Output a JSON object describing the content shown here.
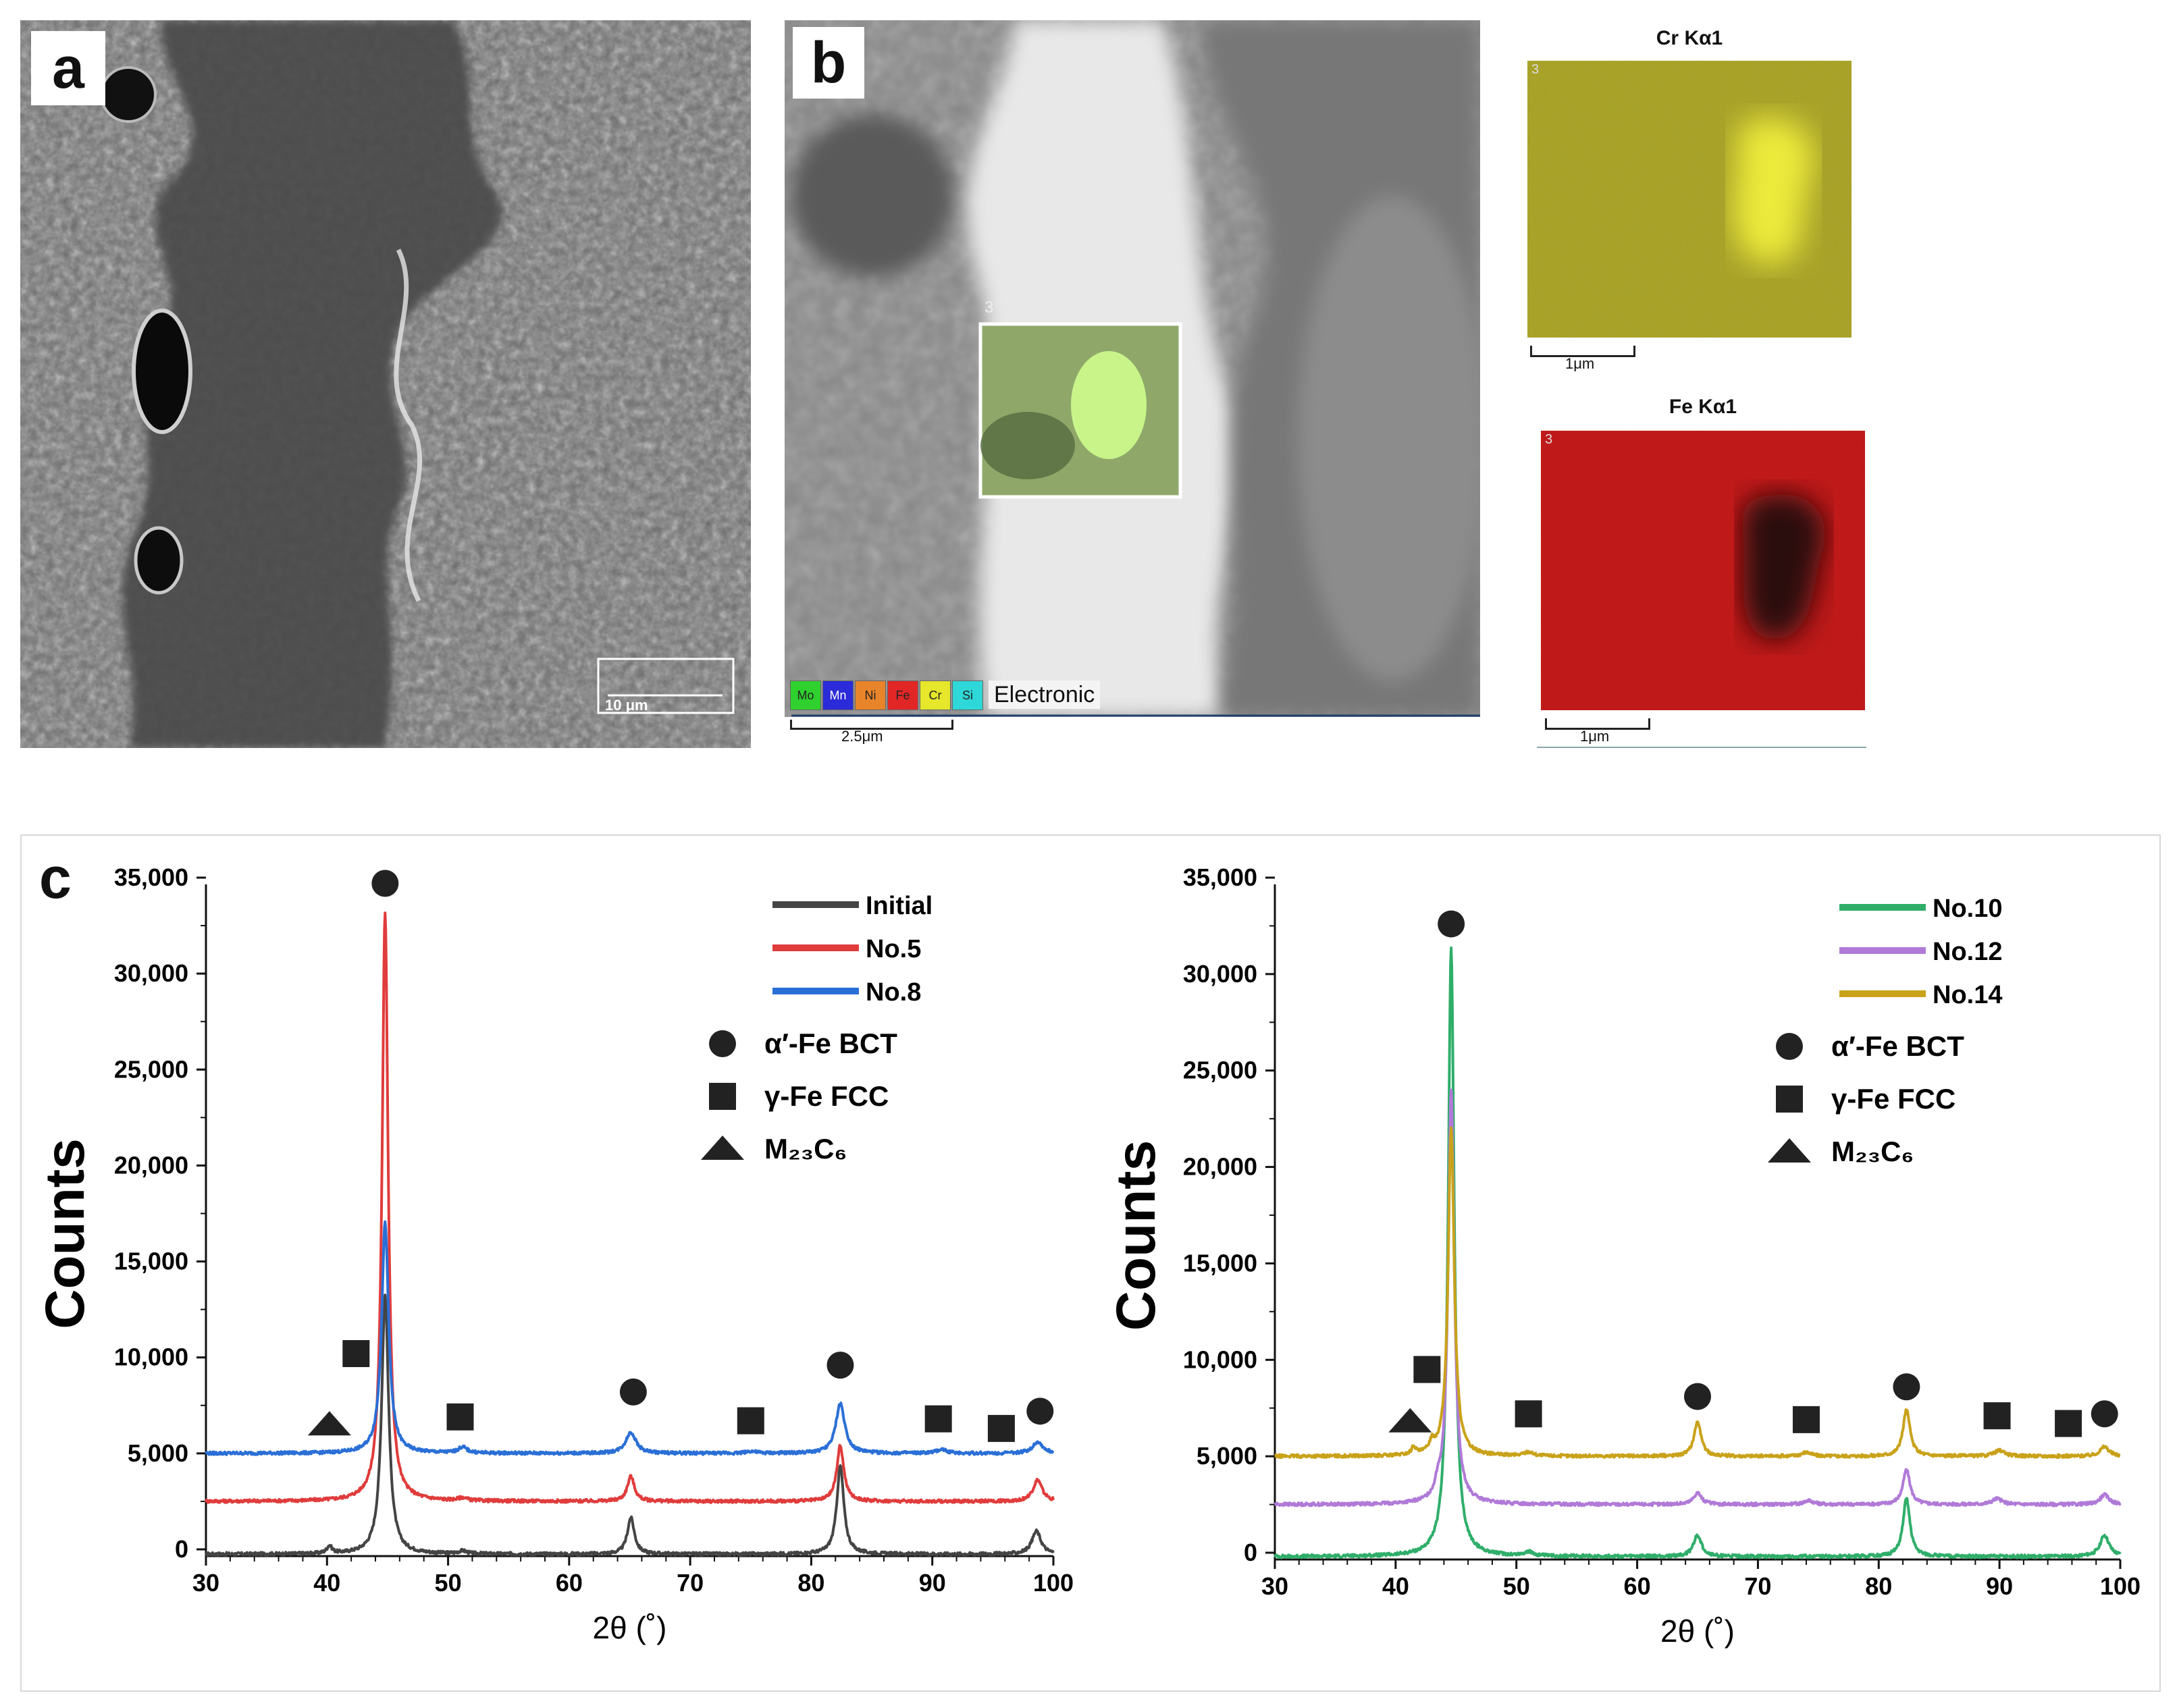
{
  "panels": {
    "a": {
      "letter": "a",
      "scalebar": "10 μm"
    },
    "b": {
      "letter": "b",
      "region_label": "3",
      "element_legend": [
        "Mo",
        "Mn",
        "Ni",
        "Fe",
        "Cr",
        "Si"
      ],
      "element_colors": [
        "#2fd12f",
        "#2b2bd9",
        "#e8842a",
        "#e22626",
        "#e6e62b",
        "#2fd8d8"
      ],
      "legend_text": "Electronic",
      "scalebar": "2.5μm"
    },
    "maps": [
      {
        "title": "Cr Kα1",
        "region_label": "3",
        "scalebar": "1μm",
        "color": "#c9c02a"
      },
      {
        "title": "Fe Kα1",
        "region_label": "3",
        "scalebar": "1μm",
        "color": "#c81818"
      }
    ],
    "c": {
      "letter": "c"
    }
  },
  "chart_data": [
    {
      "type": "line",
      "xlabel": "2θ (˚)",
      "ylabel": "Counts",
      "xlim": [
        30,
        100
      ],
      "ylim": [
        0,
        35000
      ],
      "xticks": [
        30,
        40,
        50,
        60,
        70,
        80,
        90,
        100
      ],
      "yticks": [
        0,
        5000,
        10000,
        15000,
        20000,
        25000,
        30000,
        35000
      ],
      "ytick_labels": [
        "0",
        "5,000",
        "10,000",
        "15,000",
        "20,000",
        "25,000",
        "30,000",
        "35,000"
      ],
      "legend_position": "top-right",
      "series": [
        {
          "name": "Initial",
          "color": "#444444",
          "baseline": -250,
          "peaks": [
            [
              40.2,
              400,
              0.25
            ],
            [
              44.8,
              13500,
              0.35
            ],
            [
              51.2,
              150,
              0.4
            ],
            [
              65.1,
              1900,
              0.35
            ],
            [
              82.4,
              4600,
              0.35
            ],
            [
              98.6,
              1200,
              0.45
            ]
          ]
        },
        {
          "name": "No.5",
          "color": "#e03c3c",
          "baseline": 2500,
          "peaks": [
            [
              44.8,
              30700,
              0.3
            ],
            [
              51.2,
              150,
              0.4
            ],
            [
              65.1,
              1300,
              0.35
            ],
            [
              82.4,
              2900,
              0.35
            ],
            [
              98.7,
              1100,
              0.45
            ]
          ]
        },
        {
          "name": "No.8",
          "color": "#2a6fd6",
          "baseline": 5000,
          "peaks": [
            [
              44.8,
              12000,
              0.35
            ],
            [
              51.2,
              300,
              0.45
            ],
            [
              65.1,
              1100,
              0.5
            ],
            [
              75.0,
              100,
              0.5
            ],
            [
              82.4,
              2600,
              0.45
            ],
            [
              90.8,
              200,
              0.5
            ],
            [
              98.7,
              600,
              0.5
            ]
          ]
        }
      ],
      "markers": [
        {
          "symbol": "circle",
          "x": 44.8,
          "y": 34700
        },
        {
          "symbol": "square",
          "x": 42.4,
          "y": 10200
        },
        {
          "symbol": "triangle",
          "x": 40.2,
          "y": 6500
        },
        {
          "symbol": "square",
          "x": 51.0,
          "y": 6900
        },
        {
          "symbol": "circle",
          "x": 65.3,
          "y": 8200
        },
        {
          "symbol": "square",
          "x": 75.0,
          "y": 6700
        },
        {
          "symbol": "circle",
          "x": 82.4,
          "y": 9600
        },
        {
          "symbol": "square",
          "x": 90.5,
          "y": 6800
        },
        {
          "symbol": "square",
          "x": 95.7,
          "y": 6300
        },
        {
          "symbol": "circle",
          "x": 98.9,
          "y": 7200
        }
      ],
      "phase_legend": [
        {
          "symbol": "circle",
          "label": "α′-Fe BCT"
        },
        {
          "symbol": "square",
          "label": "γ-Fe  FCC"
        },
        {
          "symbol": "triangle",
          "label": "M₂₃C₆"
        }
      ]
    },
    {
      "type": "line",
      "xlabel": "2θ (˚)",
      "ylabel": "Counts",
      "xlim": [
        30,
        100
      ],
      "ylim": [
        0,
        35000
      ],
      "xticks": [
        30,
        40,
        50,
        60,
        70,
        80,
        90,
        100
      ],
      "yticks": [
        0,
        5000,
        10000,
        15000,
        20000,
        25000,
        30000,
        35000
      ],
      "ytick_labels": [
        "0",
        "5,000",
        "10,000",
        "15,000",
        "20,000",
        "25,000",
        "30,000",
        "35,000"
      ],
      "legend_position": "top-right",
      "series": [
        {
          "name": "No.10",
          "color": "#2fae6a",
          "baseline": -200,
          "peaks": [
            [
              44.6,
              31500,
              0.3
            ],
            [
              51.0,
              200,
              0.45
            ],
            [
              65.0,
              1100,
              0.4
            ],
            [
              82.3,
              3000,
              0.35
            ],
            [
              98.7,
              1100,
              0.45
            ]
          ]
        },
        {
          "name": "No.12",
          "color": "#b07ad8",
          "baseline": 2500,
          "peaks": [
            [
              43.5,
              600,
              0.25
            ],
            [
              44.6,
              21500,
              0.3
            ],
            [
              65.0,
              600,
              0.4
            ],
            [
              74.2,
              200,
              0.5
            ],
            [
              82.3,
              1800,
              0.35
            ],
            [
              89.8,
              300,
              0.5
            ],
            [
              98.7,
              500,
              0.45
            ]
          ]
        },
        {
          "name": "No.14",
          "color": "#c9a21a",
          "baseline": 5000,
          "peaks": [
            [
              41.5,
              400,
              0.2
            ],
            [
              43.0,
              500,
              0.25
            ],
            [
              44.6,
              17000,
              0.3
            ],
            [
              51.0,
              200,
              0.45
            ],
            [
              65.0,
              1800,
              0.35
            ],
            [
              74.0,
              200,
              0.5
            ],
            [
              82.3,
              2400,
              0.35
            ],
            [
              90.0,
              300,
              0.5
            ],
            [
              98.7,
              500,
              0.45
            ]
          ]
        }
      ],
      "markers": [
        {
          "symbol": "circle",
          "x": 44.6,
          "y": 32600
        },
        {
          "symbol": "square",
          "x": 42.6,
          "y": 9500
        },
        {
          "symbol": "triangle",
          "x": 41.2,
          "y": 6800
        },
        {
          "symbol": "square",
          "x": 51.0,
          "y": 7200
        },
        {
          "symbol": "circle",
          "x": 65.0,
          "y": 8100
        },
        {
          "symbol": "square",
          "x": 74.0,
          "y": 6900
        },
        {
          "symbol": "circle",
          "x": 82.3,
          "y": 8600
        },
        {
          "symbol": "square",
          "x": 89.8,
          "y": 7100
        },
        {
          "symbol": "square",
          "x": 95.7,
          "y": 6700
        },
        {
          "symbol": "circle",
          "x": 98.7,
          "y": 7200
        }
      ],
      "phase_legend": [
        {
          "symbol": "circle",
          "label": "α′-Fe BCT"
        },
        {
          "symbol": "square",
          "label": "γ-Fe  FCC"
        },
        {
          "symbol": "triangle",
          "label": "M₂₃C₆"
        }
      ]
    }
  ]
}
